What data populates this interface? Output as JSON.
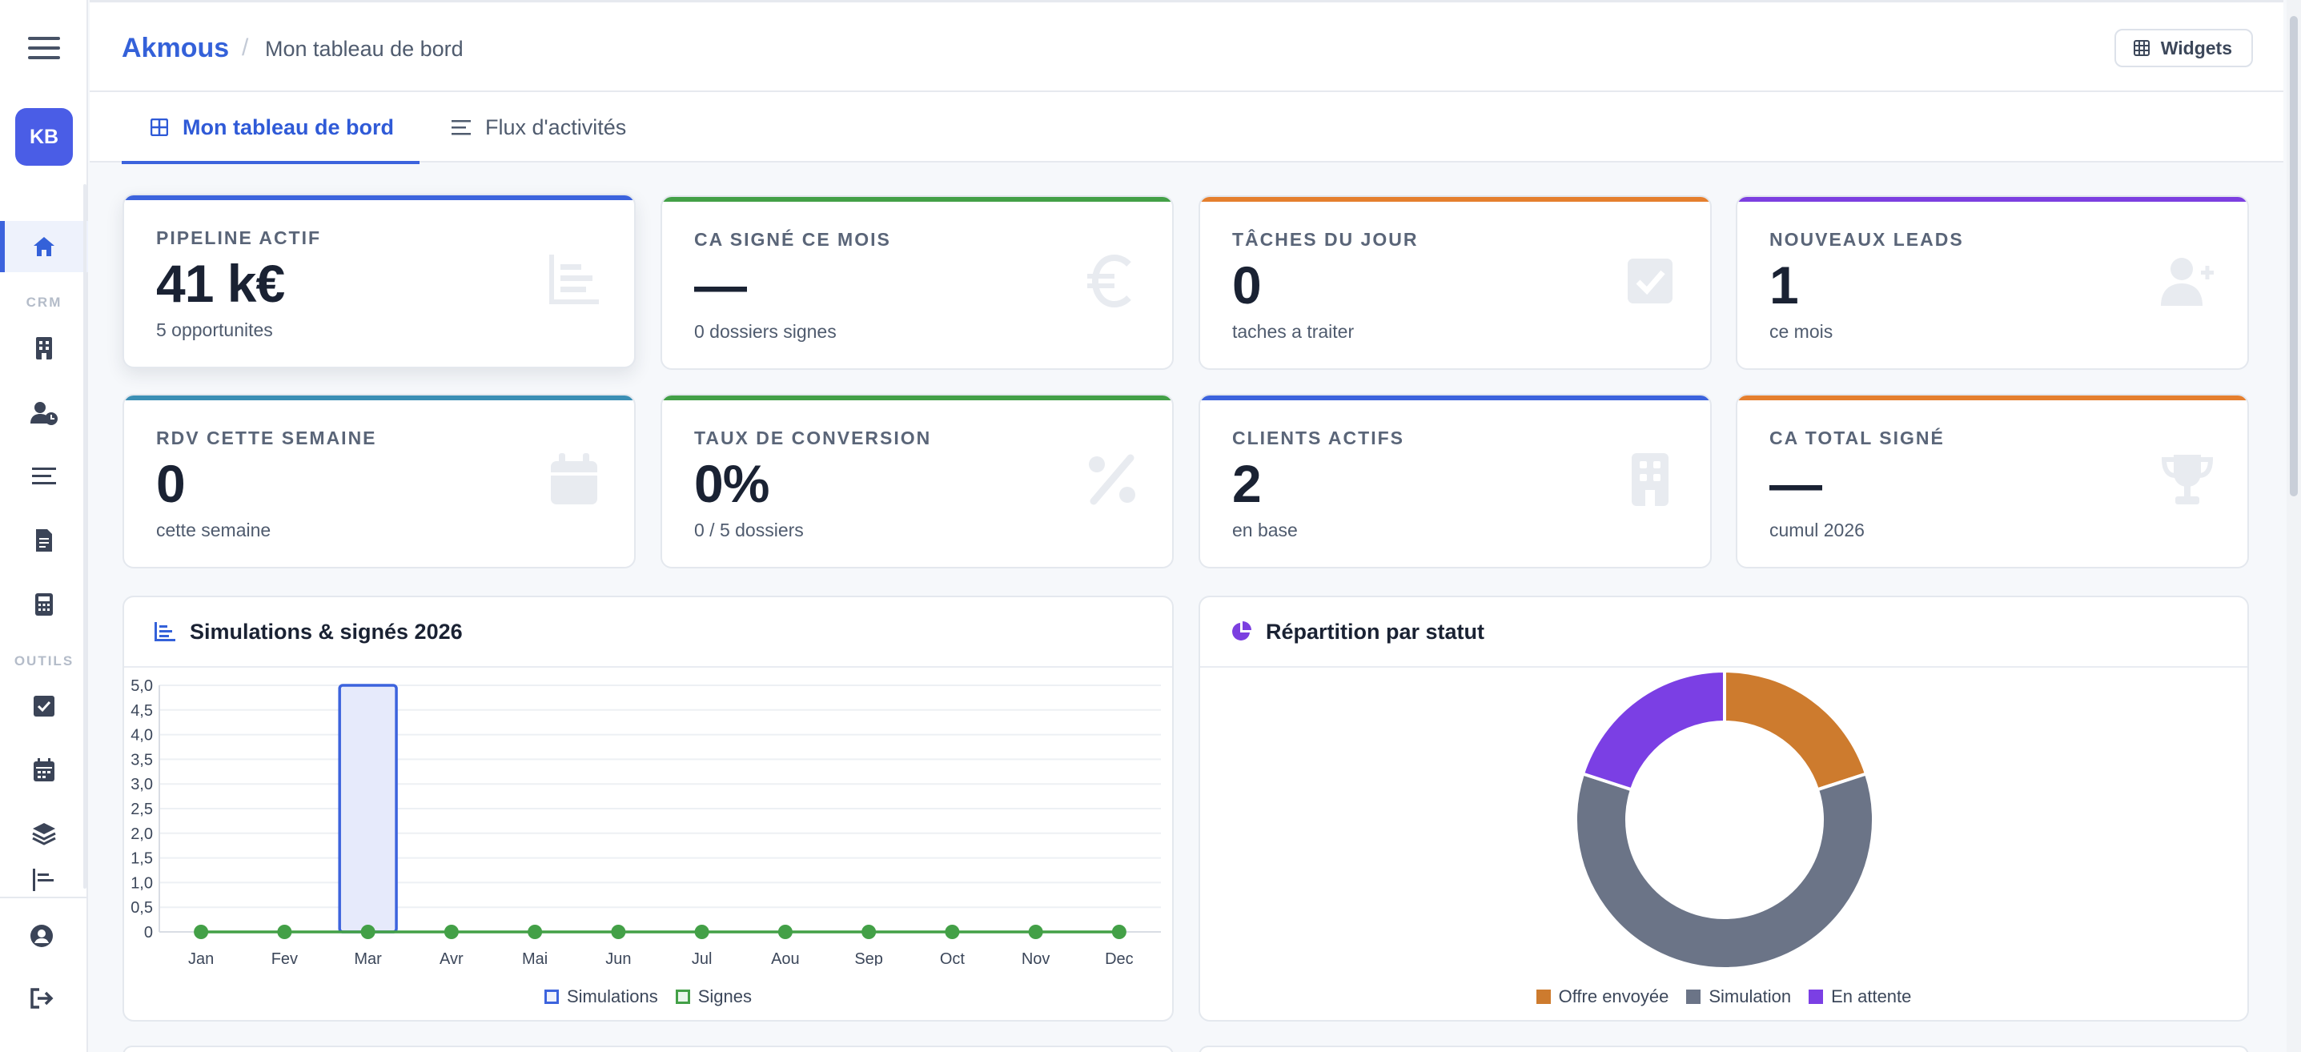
{
  "sidebar": {
    "avatar": "KB",
    "section_crm": "CRM",
    "section_outils": "OUTILS",
    "items": [
      {
        "name": "home-icon"
      },
      {
        "name": "building-icon"
      },
      {
        "name": "user-clock-icon"
      },
      {
        "name": "list-icon"
      },
      {
        "name": "file-invoice-icon"
      },
      {
        "name": "calculator-icon"
      },
      {
        "name": "checkbox-icon"
      },
      {
        "name": "calendar-icon"
      },
      {
        "name": "layers-icon"
      }
    ]
  },
  "header": {
    "brand": "Akmous",
    "separator": "/",
    "breadcrumb": "Mon tableau de bord",
    "widgets_label": "Widgets"
  },
  "tabs": [
    {
      "label": "Mon tableau de bord",
      "active": true
    },
    {
      "label": "Flux d'activités",
      "active": false
    }
  ],
  "kpis": [
    {
      "label": "PIPELINE ACTIF",
      "value": "41 k€",
      "sub": "5 opportunites",
      "color": "#3c63dd",
      "icon": "chart-icon"
    },
    {
      "label": "CA SIGNÉ CE MOIS",
      "value": "—",
      "sub": "0 dossiers signes",
      "color": "#43a047",
      "icon": "euro-icon"
    },
    {
      "label": "TÂCHES DU JOUR",
      "value": "0",
      "sub": "taches a traiter",
      "color": "#e57f2e",
      "icon": "check-square-icon"
    },
    {
      "label": "NOUVEAUX LEADS",
      "value": "1",
      "sub": "ce mois",
      "color": "#7c3fe0",
      "icon": "user-plus-icon"
    },
    {
      "label": "RDV CETTE SEMAINE",
      "value": "0",
      "sub": "cette semaine",
      "color": "#3b8fb5",
      "icon": "calendar-icon"
    },
    {
      "label": "TAUX DE CONVERSION",
      "value": "0%",
      "sub": "0 / 5 dossiers",
      "color": "#43a047",
      "icon": "percent-icon"
    },
    {
      "label": "CLIENTS ACTIFS",
      "value": "2",
      "sub": "en base",
      "color": "#3c63dd",
      "icon": "building-icon"
    },
    {
      "label": "CA TOTAL SIGNÉ",
      "value": "—",
      "sub": "cumul 2026",
      "color": "#e57f2e",
      "icon": "trophy-icon"
    }
  ],
  "chart_bar": {
    "title": "Simulations & signés 2026",
    "chart_data": {
      "type": "bar",
      "categories": [
        "Jan",
        "Fev",
        "Mar",
        "Avr",
        "Mai",
        "Jun",
        "Jul",
        "Aou",
        "Sep",
        "Oct",
        "Nov",
        "Dec"
      ],
      "series": [
        {
          "name": "Simulations",
          "type": "bar",
          "color": "#3c63dd",
          "values": [
            0,
            0,
            5,
            0,
            0,
            0,
            0,
            0,
            0,
            0,
            0,
            0
          ]
        },
        {
          "name": "Signes",
          "type": "line",
          "color": "#43a047",
          "values": [
            0,
            0,
            0,
            0,
            0,
            0,
            0,
            0,
            0,
            0,
            0,
            0
          ]
        }
      ],
      "ylim": [
        0,
        5
      ],
      "yticks": [
        "0",
        "0,5",
        "1,0",
        "1,5",
        "2,0",
        "2,5",
        "3,0",
        "3,5",
        "4,0",
        "4,5",
        "5,0"
      ],
      "grid": true,
      "legend": "bottom"
    }
  },
  "chart_pie": {
    "title": "Répartition par statut",
    "chart_data": {
      "type": "pie",
      "donut": true,
      "slices": [
        {
          "label": "Offre envoyée",
          "value": 1,
          "color": "#cd7b2e"
        },
        {
          "label": "Simulation",
          "value": 3,
          "color": "#6b7487"
        },
        {
          "label": "En attente",
          "value": 1,
          "color": "#7b3fe4"
        }
      ],
      "legend": "bottom"
    }
  }
}
